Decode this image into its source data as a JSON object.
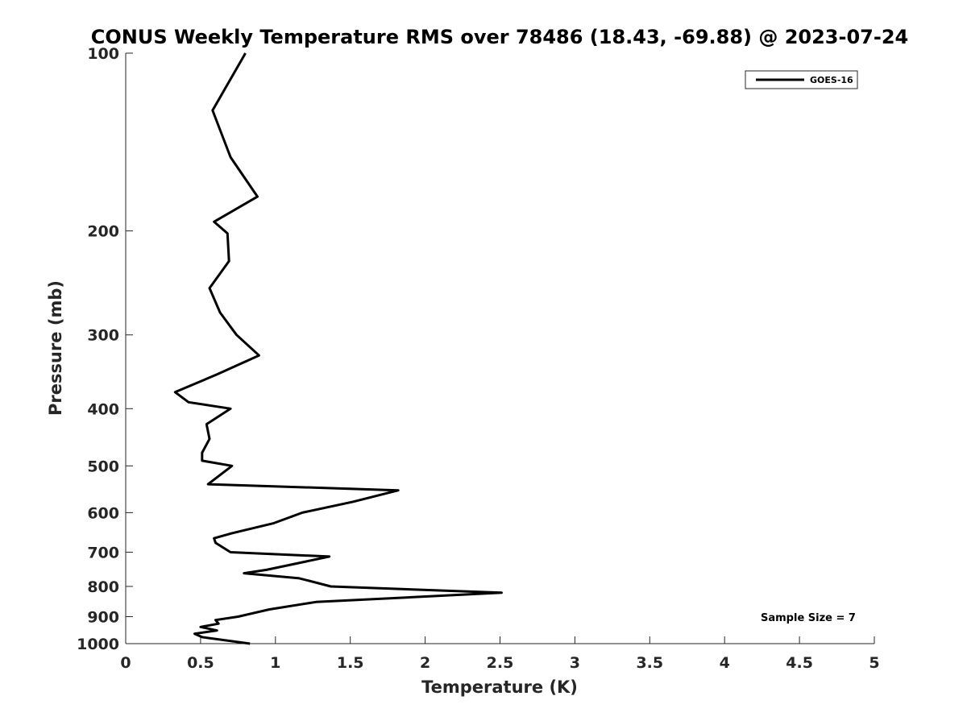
{
  "chart_data": {
    "type": "line",
    "title": "CONUS Weekly Temperature RMS over 78486 (18.43, -69.88) @ 2023-07-24",
    "xlabel": "Temperature (K)",
    "ylabel": "Pressure (mb)",
    "xlim": [
      0,
      5
    ],
    "ylim": [
      100,
      1000
    ],
    "y_scale": "log",
    "y_reversed": true,
    "x_ticks": [
      "0",
      "0.5",
      "1",
      "1.5",
      "2",
      "2.5",
      "3",
      "3.5",
      "4",
      "4.5",
      "5"
    ],
    "y_ticks": [
      "100",
      "200",
      "300",
      "400",
      "500",
      "600",
      "700",
      "800",
      "900",
      "1000"
    ],
    "grid": false,
    "legend_position": "top-right",
    "series": [
      {
        "name": "GOES-16",
        "color": "#000000",
        "points": [
          [
            0.8,
            100
          ],
          [
            0.58,
            125
          ],
          [
            0.7,
            150
          ],
          [
            0.88,
            175
          ],
          [
            0.59,
            193
          ],
          [
            0.68,
            202
          ],
          [
            0.69,
            225
          ],
          [
            0.56,
            250
          ],
          [
            0.63,
            275
          ],
          [
            0.74,
            300
          ],
          [
            0.89,
            325
          ],
          [
            0.61,
            350
          ],
          [
            0.33,
            375
          ],
          [
            0.42,
            390
          ],
          [
            0.7,
            400
          ],
          [
            0.54,
            425
          ],
          [
            0.56,
            450
          ],
          [
            0.51,
            475
          ],
          [
            0.51,
            490
          ],
          [
            0.71,
            500
          ],
          [
            0.55,
            537
          ],
          [
            1.82,
            550
          ],
          [
            1.52,
            575
          ],
          [
            1.18,
            600
          ],
          [
            0.99,
            625
          ],
          [
            0.71,
            650
          ],
          [
            0.59,
            663
          ],
          [
            0.6,
            675
          ],
          [
            0.7,
            700
          ],
          [
            1.36,
            712
          ],
          [
            0.94,
            750
          ],
          [
            0.79,
            760
          ],
          [
            1.16,
            775
          ],
          [
            1.37,
            800
          ],
          [
            2.51,
            820
          ],
          [
            1.27,
            850
          ],
          [
            0.96,
            875
          ],
          [
            0.75,
            900
          ],
          [
            0.6,
            912
          ],
          [
            0.62,
            925
          ],
          [
            0.5,
            937
          ],
          [
            0.61,
            950
          ],
          [
            0.46,
            962
          ],
          [
            0.51,
            975
          ],
          [
            0.83,
            1000
          ]
        ]
      }
    ],
    "annotation": "Sample Size = 7"
  }
}
